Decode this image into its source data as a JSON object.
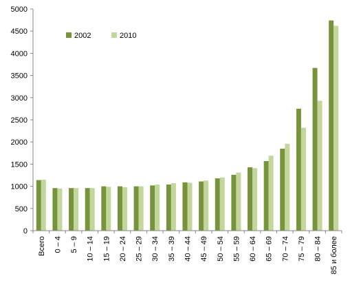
{
  "chart_data": {
    "type": "bar",
    "title": "",
    "xlabel": "",
    "ylabel": "",
    "ylim": [
      0,
      5000
    ],
    "yticks": [
      "0",
      "500",
      "1000",
      "1500",
      "2000",
      "2500",
      "3000",
      "3500",
      "4000",
      "4500",
      "5000"
    ],
    "grid": "none",
    "legend": "top-left",
    "categories": [
      "Всего",
      "0 – 4",
      "5 – 9",
      "10 – 14",
      "15 – 19",
      "20 – 24",
      "25 – 29",
      "30 – 34",
      "35 – 39",
      "40 – 44",
      "45 – 49",
      "50 – 54",
      "55 – 59",
      "60 – 64",
      "65 – 69",
      "70 – 74",
      "75 – 79",
      "80 – 84",
      "85 и более"
    ],
    "series": [
      {
        "name": "2002",
        "color": "#77933c",
        "values": [
          1140,
          960,
          960,
          960,
          1000,
          1000,
          1000,
          1020,
          1040,
          1090,
          1110,
          1180,
          1260,
          1430,
          1570,
          1850,
          2750,
          3670,
          4740
        ]
      },
      {
        "name": "2010",
        "color": "#c3d69b",
        "values": [
          1150,
          950,
          960,
          960,
          990,
          980,
          1000,
          1040,
          1070,
          1080,
          1130,
          1200,
          1310,
          1410,
          1690,
          1960,
          2320,
          2930,
          4620
        ]
      }
    ]
  }
}
